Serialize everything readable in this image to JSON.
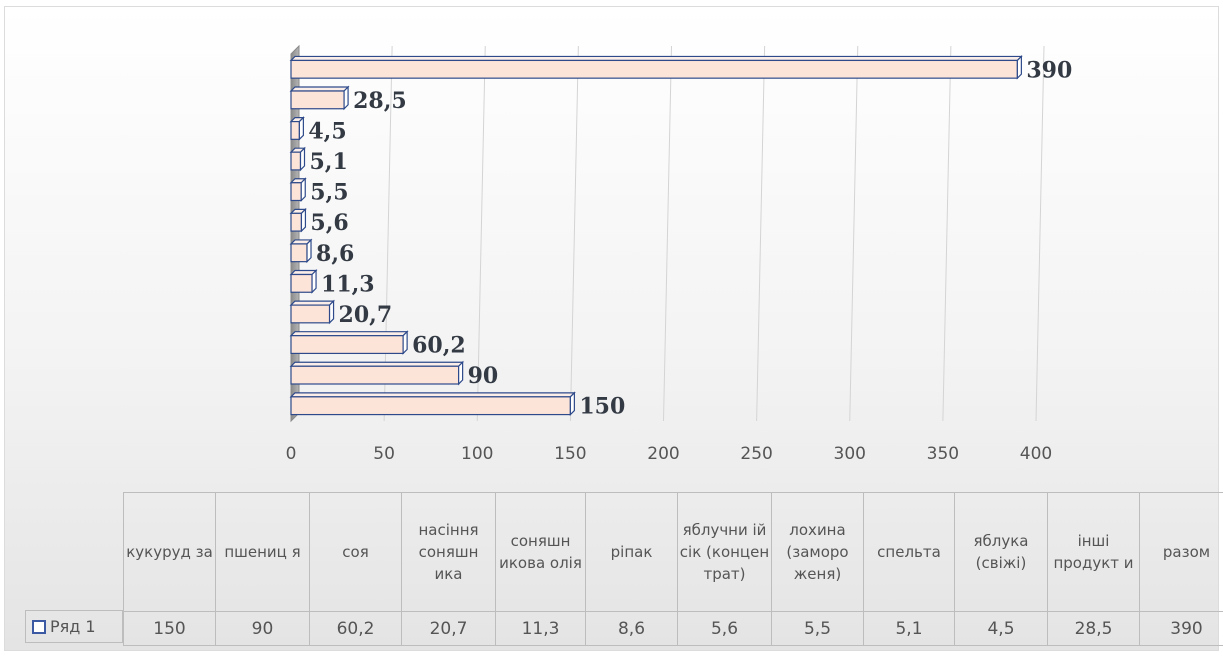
{
  "chart_data": {
    "type": "bar",
    "orientation": "horizontal",
    "categories": [
      "кукурудза",
      "пшениця",
      "соя",
      "насіння соняшника",
      "соняшникова олія",
      "ріпак",
      "яблучний сік (концентрат)",
      "лохина (заморожена)",
      "спельта",
      "яблука (свіжі)",
      "інші продукти",
      "разом"
    ],
    "category_labels": [
      "кукуруд за",
      "пшениц я",
      "соя",
      "насіння соняшн ика",
      "соняшн икова олія",
      "ріпак",
      "яблучни ій сік (концен трат)",
      "лохина (заморо женя)",
      "спельта",
      "яблука (свіжі)",
      "інші продукт и",
      "разом"
    ],
    "series": [
      {
        "name": "Ряд 1",
        "values": [
          150,
          90,
          60.2,
          20.7,
          11.3,
          8.6,
          5.6,
          5.5,
          5.1,
          4.5,
          28.5,
          390
        ]
      }
    ],
    "value_labels": [
      "150",
      "90",
      "60,2",
      "20,7",
      "11,3",
      "8,6",
      "5,6",
      "5,5",
      "5,1",
      "4,5",
      "28,5",
      "390"
    ],
    "x_ticks": [
      "0",
      "50",
      "100",
      "150",
      "200",
      "250",
      "300",
      "350",
      "400"
    ],
    "xlim": [
      0,
      400
    ],
    "grid": true,
    "legend": "data-table",
    "title": "",
    "xlabel": "",
    "ylabel": "",
    "colors": {
      "bar_fill": "#fde4d8",
      "bar_edge": "#2e4a8a",
      "grid": "#d4d4d4",
      "wall": "#9a9a9a"
    }
  }
}
